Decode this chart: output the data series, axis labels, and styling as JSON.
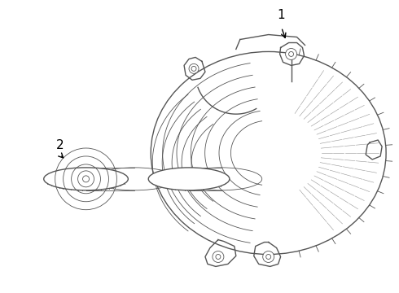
{
  "background_color": "#ffffff",
  "line_color": "#555555",
  "label_color": "#000000",
  "label1_text": "1",
  "label2_text": "2",
  "fig_width": 4.9,
  "fig_height": 3.6,
  "dpi": 100
}
